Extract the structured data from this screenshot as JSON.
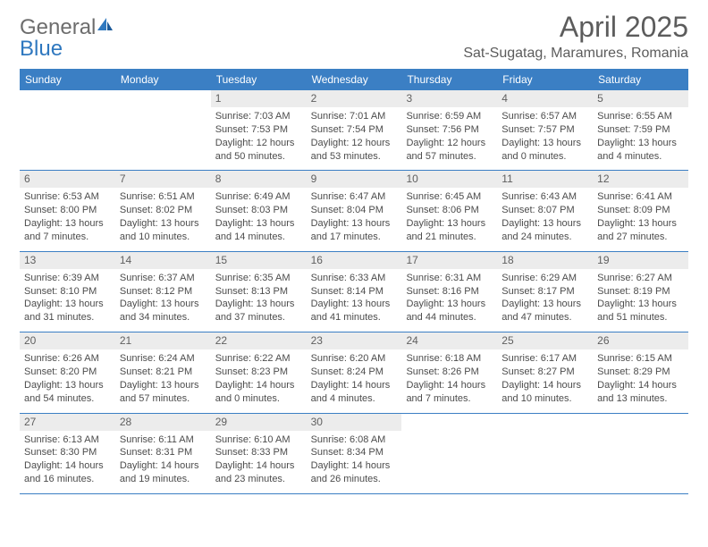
{
  "brand": {
    "part1": "General",
    "part2": "Blue"
  },
  "title": "April 2025",
  "location": "Sat-Sugatag, Maramures, Romania",
  "header_bg": "#3b7fc4",
  "weekdays": [
    "Sunday",
    "Monday",
    "Tuesday",
    "Wednesday",
    "Thursday",
    "Friday",
    "Saturday"
  ],
  "weeks": [
    [
      null,
      null,
      {
        "n": "1",
        "sr": "7:03 AM",
        "ss": "7:53 PM",
        "d1": "12 hours",
        "d2": "and 50 minutes."
      },
      {
        "n": "2",
        "sr": "7:01 AM",
        "ss": "7:54 PM",
        "d1": "12 hours",
        "d2": "and 53 minutes."
      },
      {
        "n": "3",
        "sr": "6:59 AM",
        "ss": "7:56 PM",
        "d1": "12 hours",
        "d2": "and 57 minutes."
      },
      {
        "n": "4",
        "sr": "6:57 AM",
        "ss": "7:57 PM",
        "d1": "13 hours",
        "d2": "and 0 minutes."
      },
      {
        "n": "5",
        "sr": "6:55 AM",
        "ss": "7:59 PM",
        "d1": "13 hours",
        "d2": "and 4 minutes."
      }
    ],
    [
      {
        "n": "6",
        "sr": "6:53 AM",
        "ss": "8:00 PM",
        "d1": "13 hours",
        "d2": "and 7 minutes."
      },
      {
        "n": "7",
        "sr": "6:51 AM",
        "ss": "8:02 PM",
        "d1": "13 hours",
        "d2": "and 10 minutes."
      },
      {
        "n": "8",
        "sr": "6:49 AM",
        "ss": "8:03 PM",
        "d1": "13 hours",
        "d2": "and 14 minutes."
      },
      {
        "n": "9",
        "sr": "6:47 AM",
        "ss": "8:04 PM",
        "d1": "13 hours",
        "d2": "and 17 minutes."
      },
      {
        "n": "10",
        "sr": "6:45 AM",
        "ss": "8:06 PM",
        "d1": "13 hours",
        "d2": "and 21 minutes."
      },
      {
        "n": "11",
        "sr": "6:43 AM",
        "ss": "8:07 PM",
        "d1": "13 hours",
        "d2": "and 24 minutes."
      },
      {
        "n": "12",
        "sr": "6:41 AM",
        "ss": "8:09 PM",
        "d1": "13 hours",
        "d2": "and 27 minutes."
      }
    ],
    [
      {
        "n": "13",
        "sr": "6:39 AM",
        "ss": "8:10 PM",
        "d1": "13 hours",
        "d2": "and 31 minutes."
      },
      {
        "n": "14",
        "sr": "6:37 AM",
        "ss": "8:12 PM",
        "d1": "13 hours",
        "d2": "and 34 minutes."
      },
      {
        "n": "15",
        "sr": "6:35 AM",
        "ss": "8:13 PM",
        "d1": "13 hours",
        "d2": "and 37 minutes."
      },
      {
        "n": "16",
        "sr": "6:33 AM",
        "ss": "8:14 PM",
        "d1": "13 hours",
        "d2": "and 41 minutes."
      },
      {
        "n": "17",
        "sr": "6:31 AM",
        "ss": "8:16 PM",
        "d1": "13 hours",
        "d2": "and 44 minutes."
      },
      {
        "n": "18",
        "sr": "6:29 AM",
        "ss": "8:17 PM",
        "d1": "13 hours",
        "d2": "and 47 minutes."
      },
      {
        "n": "19",
        "sr": "6:27 AM",
        "ss": "8:19 PM",
        "d1": "13 hours",
        "d2": "and 51 minutes."
      }
    ],
    [
      {
        "n": "20",
        "sr": "6:26 AM",
        "ss": "8:20 PM",
        "d1": "13 hours",
        "d2": "and 54 minutes."
      },
      {
        "n": "21",
        "sr": "6:24 AM",
        "ss": "8:21 PM",
        "d1": "13 hours",
        "d2": "and 57 minutes."
      },
      {
        "n": "22",
        "sr": "6:22 AM",
        "ss": "8:23 PM",
        "d1": "14 hours",
        "d2": "and 0 minutes."
      },
      {
        "n": "23",
        "sr": "6:20 AM",
        "ss": "8:24 PM",
        "d1": "14 hours",
        "d2": "and 4 minutes."
      },
      {
        "n": "24",
        "sr": "6:18 AM",
        "ss": "8:26 PM",
        "d1": "14 hours",
        "d2": "and 7 minutes."
      },
      {
        "n": "25",
        "sr": "6:17 AM",
        "ss": "8:27 PM",
        "d1": "14 hours",
        "d2": "and 10 minutes."
      },
      {
        "n": "26",
        "sr": "6:15 AM",
        "ss": "8:29 PM",
        "d1": "14 hours",
        "d2": "and 13 minutes."
      }
    ],
    [
      {
        "n": "27",
        "sr": "6:13 AM",
        "ss": "8:30 PM",
        "d1": "14 hours",
        "d2": "and 16 minutes."
      },
      {
        "n": "28",
        "sr": "6:11 AM",
        "ss": "8:31 PM",
        "d1": "14 hours",
        "d2": "and 19 minutes."
      },
      {
        "n": "29",
        "sr": "6:10 AM",
        "ss": "8:33 PM",
        "d1": "14 hours",
        "d2": "and 23 minutes."
      },
      {
        "n": "30",
        "sr": "6:08 AM",
        "ss": "8:34 PM",
        "d1": "14 hours",
        "d2": "and 26 minutes."
      },
      null,
      null,
      null
    ]
  ],
  "labels": {
    "sunrise_prefix": "Sunrise: ",
    "sunset_prefix": "Sunset: ",
    "daylight_prefix": "Daylight: "
  }
}
